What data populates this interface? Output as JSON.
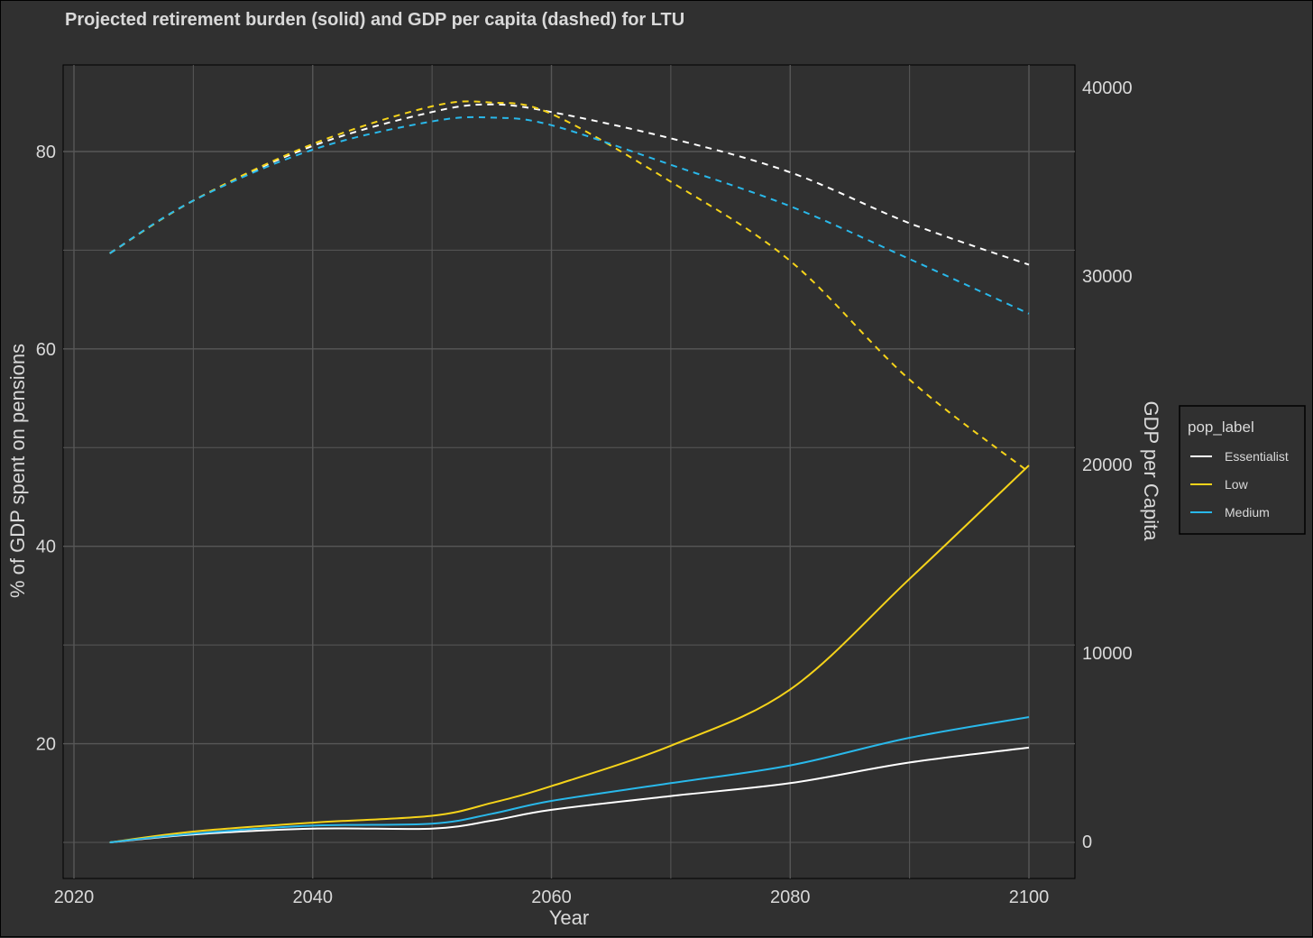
{
  "chart_data": {
    "type": "line",
    "title": "Projected retirement burden (solid) and GDP per capita (dashed) for LTU",
    "xlabel": "Year",
    "ylabel": "% of GDP spent on pensions",
    "y2label": "GDP per Capita",
    "xlim": [
      2020,
      2100
    ],
    "ylim": [
      10,
      80
    ],
    "y2lim": [
      0,
      40000
    ],
    "x_ticks": [
      "2020",
      "2040",
      "2060",
      "2080",
      "2100"
    ],
    "y_ticks": [
      "20",
      "40",
      "60",
      "80"
    ],
    "y2_ticks": [
      "0",
      "10000",
      "20000",
      "30000",
      "40000"
    ],
    "grid": true,
    "legend": {
      "title": "pop_label",
      "position": "right",
      "entries": [
        "Essentialist",
        "Low",
        "Medium"
      ]
    },
    "colors": {
      "Essentialist": "#ffffff",
      "Low": "#f5d31a",
      "Medium": "#29b8ea"
    },
    "x": [
      2023,
      2030,
      2040,
      2050,
      2055,
      2060,
      2070,
      2080,
      2090,
      2100
    ],
    "series": [
      {
        "name": "Essentialist",
        "metric": "% of GDP spent on pensions",
        "style": "solid",
        "values": [
          10.0,
          10.8,
          11.4,
          11.4,
          12.2,
          13.3,
          14.7,
          16.0,
          18.1,
          19.6
        ]
      },
      {
        "name": "Low",
        "metric": "% of GDP spent on pensions",
        "style": "solid",
        "values": [
          10.0,
          11.1,
          12.0,
          12.7,
          14.0,
          15.7,
          19.8,
          25.5,
          36.7,
          48.2
        ]
      },
      {
        "name": "Medium",
        "metric": "% of GDP spent on pensions",
        "style": "solid",
        "values": [
          10.0,
          10.9,
          11.7,
          11.9,
          12.9,
          14.2,
          16.0,
          17.8,
          20.6,
          22.7
        ]
      },
      {
        "name": "Essentialist",
        "metric": "GDP per Capita",
        "style": "dashed",
        "values": [
          31200,
          34000,
          36900,
          38700,
          39100,
          38700,
          37300,
          35500,
          32800,
          30600
        ]
      },
      {
        "name": "Low",
        "metric": "GDP per Capita",
        "style": "dashed",
        "values": [
          31200,
          34000,
          37000,
          39000,
          39200,
          38600,
          35000,
          30800,
          24500,
          19600
        ]
      },
      {
        "name": "Medium",
        "metric": "GDP per Capita",
        "style": "dashed",
        "values": [
          31200,
          34000,
          36700,
          38200,
          38400,
          38000,
          35900,
          33700,
          30900,
          28000
        ]
      }
    ]
  }
}
